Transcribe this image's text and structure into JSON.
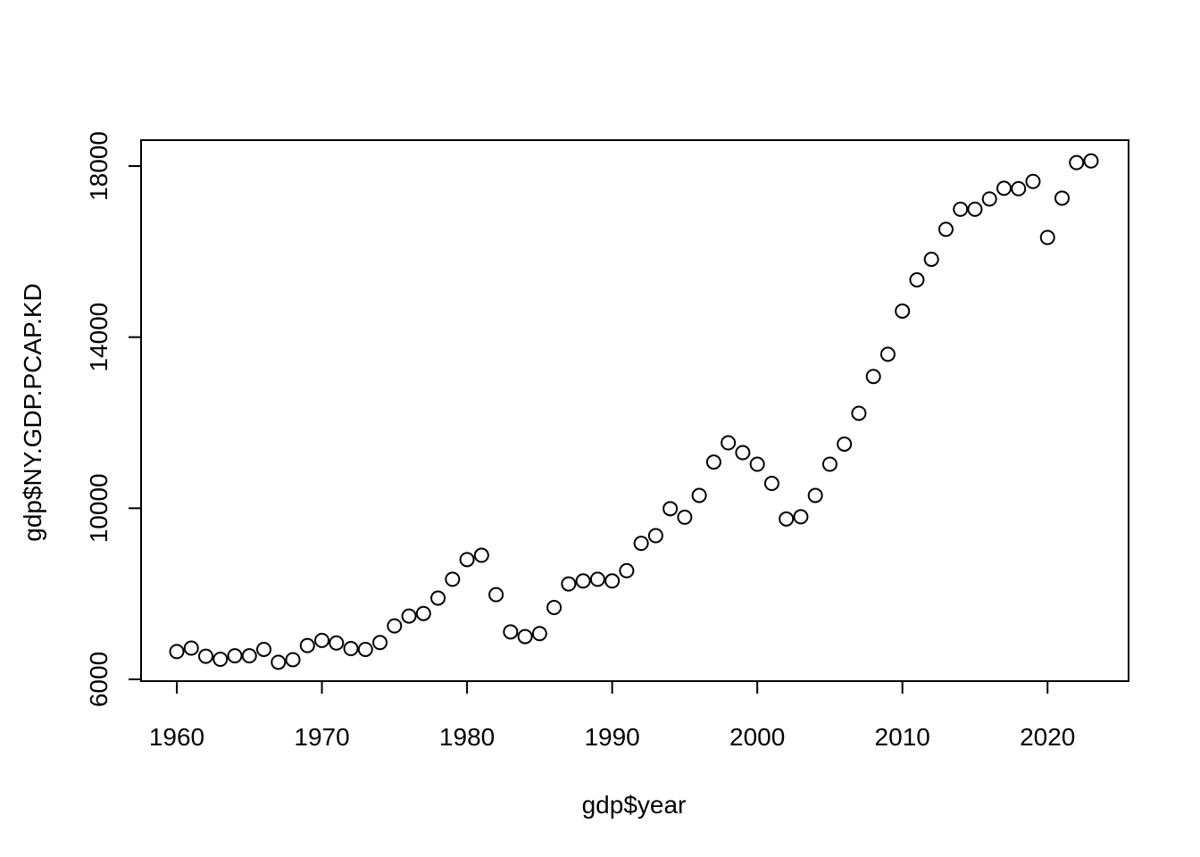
{
  "chart_data": {
    "type": "scatter",
    "title": "",
    "xlabel": "gdp$year",
    "ylabel": "gdp$NY.GDP.PCAP.KD",
    "xlim": [
      1960,
      2023
    ],
    "ylim": [
      6000,
      18000
    ],
    "x_ticks": [
      1960,
      1970,
      1980,
      1990,
      2000,
      2010,
      2020
    ],
    "y_ticks": [
      6000,
      10000,
      14000,
      18000
    ],
    "grid": false,
    "marker": "open-circle",
    "marker_color": "#000000",
    "x": [
      1960,
      1961,
      1962,
      1963,
      1964,
      1965,
      1966,
      1967,
      1968,
      1969,
      1970,
      1971,
      1972,
      1973,
      1974,
      1975,
      1976,
      1977,
      1978,
      1979,
      1980,
      1981,
      1982,
      1983,
      1984,
      1985,
      1986,
      1987,
      1988,
      1989,
      1990,
      1991,
      1992,
      1993,
      1994,
      1995,
      1996,
      1997,
      1998,
      1999,
      2000,
      2001,
      2002,
      2003,
      2004,
      2005,
      2006,
      2007,
      2008,
      2009,
      2010,
      2011,
      2012,
      2013,
      2014,
      2015,
      2016,
      2017,
      2018,
      2019,
      2020,
      2021,
      2022,
      2023
    ],
    "y": [
      6650,
      6730,
      6540,
      6470,
      6550,
      6550,
      6700,
      6400,
      6460,
      6790,
      6910,
      6850,
      6720,
      6700,
      6860,
      7250,
      7480,
      7540,
      7900,
      8340,
      8800,
      8900,
      7980,
      7110,
      7000,
      7070,
      7680,
      8230,
      8300,
      8340,
      8300,
      8540,
      9180,
      9360,
      9990,
      9790,
      10300,
      11080,
      11530,
      11300,
      11030,
      10580,
      9750,
      9800,
      10300,
      11030,
      11500,
      12220,
      13080,
      13600,
      14610,
      15340,
      15820,
      16520,
      16990,
      16990,
      17230,
      17480,
      17470,
      17640,
      16330,
      17250,
      18080,
      18120
    ]
  }
}
